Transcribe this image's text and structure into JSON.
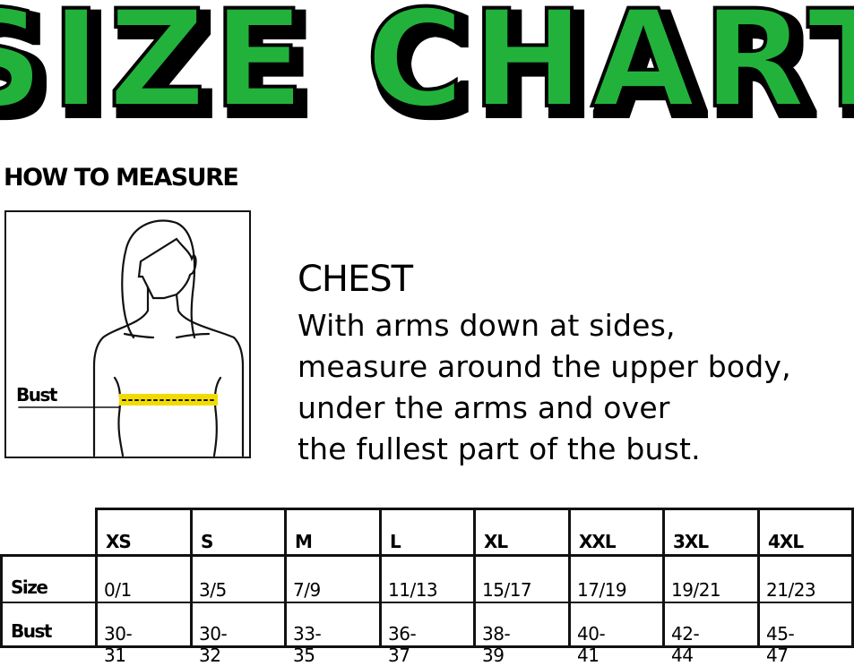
{
  "title": "SIZE CHART",
  "colors": {
    "title_fill": "#22b23a",
    "title_shadow": "#000000",
    "tape": "#f2dc00"
  },
  "how_to_measure": "HOW TO MEASURE",
  "figure": {
    "label": "Bust"
  },
  "chest": {
    "heading": "CHEST",
    "lines": [
      "With arms down at sides,",
      "measure around the upper body,",
      "under the arms and over",
      "the fullest part of the bust."
    ]
  },
  "table": {
    "columns": [
      "XS",
      "S",
      "M",
      "L",
      "XL",
      "XXL",
      "3XL",
      "4XL"
    ],
    "rows": [
      {
        "label": "Size",
        "values": [
          "0/1",
          "3/5",
          "7/9",
          "11/13",
          "15/17",
          "17/19",
          "19/21",
          "21/23"
        ]
      },
      {
        "label": "Bust",
        "values": [
          "30-31",
          "30-32",
          "33-35",
          "36-37",
          "38-39",
          "40-41",
          "42-44",
          "45-47"
        ]
      }
    ]
  }
}
